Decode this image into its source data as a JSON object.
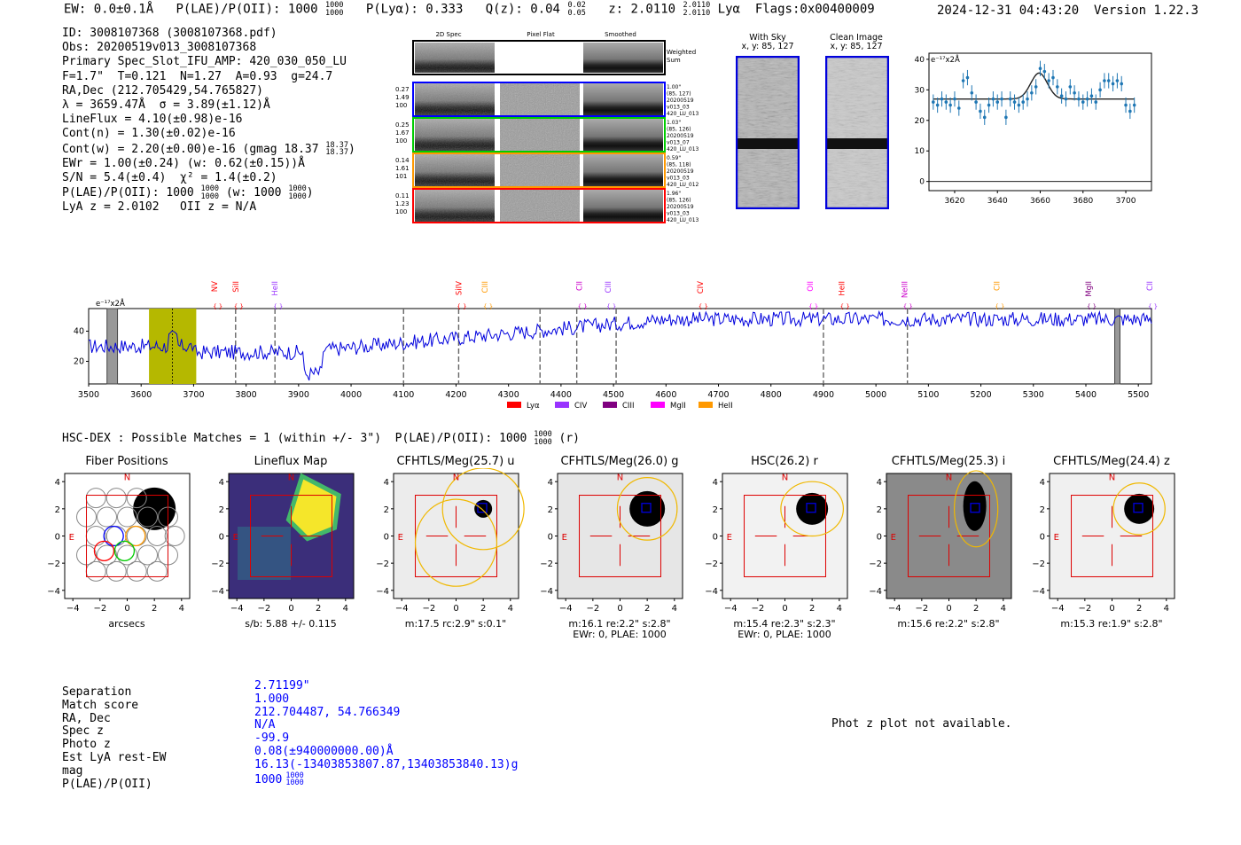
{
  "header": {
    "ew": "EW: 0.0±0.1Å",
    "plae_label": "P(LAE)/P(OII): 1000",
    "plae_hi": "1000",
    "plae_lo": "1000",
    "plya": "P(Lyα): 0.333",
    "qz_label": "Q(z): 0.04",
    "qz_hi": "0.02",
    "qz_lo": "0.05",
    "z_label": "z: 2.0110",
    "z_hi": "2.0110",
    "z_lo": "2.0110",
    "z_line": "Lyα",
    "flags": "Flags:0x00400009",
    "datetime": "2024-12-31 04:43:20",
    "version": "Version 1.22.3"
  },
  "info": {
    "id": "ID: 3008107368 (3008107368.pdf)",
    "obs": "Obs: 20200519v013_3008107368",
    "primary": "Primary Spec_Slot_IFU_AMP: 420_030_050_LU",
    "fwhm": "F=1.7\"  T=0.121  N=1.27  A=0.93  g=24.7",
    "radec": "RA,Dec (212.705429,54.765827)",
    "lambda": "λ = 3659.47Å  σ = 3.89(±1.12)Å",
    "lineflux": "LineFlux = 4.10(±0.98)e-16",
    "contn": "Cont(n) = 1.30(±0.02)e-16",
    "contw": "Cont(w) = 2.20(±0.00)e-16 (gmag 18.37",
    "contw_hi": "18.37",
    "contw_lo": "18.37",
    "ewr": "EWr = 1.00(±0.24) (w: 0.62(±0.15))Å",
    "sn": "S/N = 5.4(±0.4)  χ² = 1.4(±0.2)",
    "plae": "P(LAE)/P(OII): 1000",
    "plae_hi": "1000",
    "plae_lo": "1000",
    "plae_w": "(w: 1000",
    "plae_w_hi": "1000",
    "plae_w_lo": "1000",
    "lyaz": "LyA z = 2.0102   OII z = N/A"
  },
  "spec2d": {
    "col1": "2D Spec",
    "col2": "Pixel Flat",
    "col3": "Smoothed",
    "weighted": "Weighted Sum",
    "rows": [
      {
        "left": [
          "0.27",
          "1.49",
          "100"
        ],
        "right": [
          "1.00\"",
          "(85, 127)",
          "20200519",
          "v013_03",
          "420_LU_013"
        ],
        "color": "#0000ff"
      },
      {
        "left": [
          "0.25",
          "1.67",
          "100"
        ],
        "right": [
          "1.03\"",
          "(85, 126)",
          "20200519",
          "v013_07",
          "420_LU_013"
        ],
        "color": "#00cc00"
      },
      {
        "left": [
          "0.14",
          "1.61",
          "101"
        ],
        "right": [
          "0.59\"",
          "(85, 118)",
          "20200519",
          "v013_03",
          "420_LU_012"
        ],
        "color": "#ff9900"
      },
      {
        "left": [
          "0.11",
          "1.23",
          "100"
        ],
        "right": [
          "1.96\"",
          "(85, 126)",
          "20200519",
          "v013_03",
          "420_LU_013"
        ],
        "color": "#ff0000"
      }
    ]
  },
  "cutouts": {
    "sky_title": "With Sky",
    "sky_xy": "x, y: 85, 127",
    "clean_title": "Clean Image",
    "clean_xy": "x, y: 85, 127"
  },
  "chart_data": [
    {
      "type": "scatter",
      "title": "",
      "ylabel": "e⁻¹⁷x2Å",
      "xlabel": "",
      "xlim": [
        3608,
        3712
      ],
      "ylim": [
        -3,
        42
      ],
      "xticks": [
        3620,
        3640,
        3660,
        3680,
        3700
      ],
      "yticks": [
        0,
        10,
        20,
        30,
        40
      ],
      "x": [
        3610,
        3612,
        3614,
        3616,
        3618,
        3620,
        3622,
        3624,
        3626,
        3628,
        3630,
        3632,
        3634,
        3636,
        3638,
        3640,
        3642,
        3644,
        3646,
        3648,
        3650,
        3652,
        3654,
        3656,
        3658,
        3660,
        3662,
        3664,
        3666,
        3668,
        3670,
        3672,
        3674,
        3676,
        3678,
        3680,
        3682,
        3684,
        3686,
        3688,
        3690,
        3692,
        3694,
        3696,
        3698,
        3700,
        3702,
        3704
      ],
      "y": [
        26,
        25,
        27,
        26,
        25,
        27,
        24,
        33,
        34,
        29,
        26,
        23,
        21,
        25,
        27,
        26,
        27,
        21,
        27,
        26,
        25,
        26,
        27,
        29,
        31,
        37,
        36,
        33,
        34,
        31,
        28,
        27,
        31,
        29,
        27,
        26,
        27,
        28,
        26,
        30,
        33,
        33,
        32,
        33,
        32,
        25,
        23,
        25
      ],
      "fit": {
        "baseline": 27,
        "peak_x": 3659.47,
        "amp": 8.5,
        "sigma": 3.89
      }
    },
    {
      "type": "line",
      "ylabel": "e⁻¹⁷x2Å",
      "xlim": [
        3500,
        5525
      ],
      "ylim": [
        5,
        55
      ],
      "xticks": [
        3500,
        3600,
        3700,
        3800,
        3900,
        4000,
        4100,
        4200,
        4300,
        4400,
        4500,
        4600,
        4700,
        4800,
        4900,
        5000,
        5100,
        5200,
        5300,
        5400,
        5500
      ],
      "yticks": [
        20,
        40
      ],
      "lines": [
        {
          "name": "NV",
          "x": 3740,
          "color": "#ff0000"
        },
        {
          "name": "SiII",
          "x": 3780,
          "color": "#ff0000"
        },
        {
          "name": "HeII",
          "x": 3855,
          "color": "#9933ff"
        },
        {
          "name": "SiIV",
          "x": 4205,
          "color": "#ff0000"
        },
        {
          "name": "CIII",
          "x": 4255,
          "color": "#ff9900"
        },
        {
          "name": "CII",
          "x": 4435,
          "color": "#cc00cc"
        },
        {
          "name": "CIII",
          "x": 4490,
          "color": "#9933ff"
        },
        {
          "name": "CIV",
          "x": 4665,
          "color": "#ff0000"
        },
        {
          "name": "OII",
          "x": 4875,
          "color": "#ff00ff"
        },
        {
          "name": "HeII",
          "x": 4935,
          "color": "#ff0000"
        },
        {
          "name": "NeIII",
          "x": 5055,
          "color": "#cc00cc"
        },
        {
          "name": "CII",
          "x": 5230,
          "color": "#ff9900"
        },
        {
          "name": "MgII",
          "x": 5405,
          "color": "#800080"
        },
        {
          "name": "CII",
          "x": 5535,
          "color": "#9933ff"
        }
      ],
      "dashed": [
        3780,
        3855,
        4100,
        4205,
        4360,
        4430,
        4505,
        4900,
        5060
      ],
      "highlight": [
        3615,
        3705
      ],
      "center": 3659.47,
      "legend": [
        {
          "name": "Lyα",
          "color": "#ff0000"
        },
        {
          "name": "CIV",
          "color": "#9933ff"
        },
        {
          "name": "CIII",
          "color": "#800080"
        },
        {
          "name": "MgII",
          "color": "#ff00ff"
        },
        {
          "name": "HeII",
          "color": "#ff9900"
        }
      ]
    }
  ],
  "hsc": {
    "title": "HSC-DEX : Possible Matches = 1 (within +/- 3\")  P(LAE)/P(OII): 1000",
    "plae_hi": "1000",
    "plae_lo": "1000",
    "suffix": "(r)",
    "panels": [
      {
        "title": "Fiber Positions",
        "cap": [
          "arcsecs"
        ]
      },
      {
        "title": "Lineflux Map",
        "cap": [
          "s/b: 5.88 +/- 0.115"
        ]
      },
      {
        "title": "CFHTLS/Meg(25.7) u",
        "cap": [
          "m:17.5 rc:2.9\"  s:0.1\""
        ]
      },
      {
        "title": "CFHTLS/Meg(26.0) g",
        "cap": [
          "m:16.1  re:2.2\"  s:2.8\"",
          "EWr: 0, PLAE: 1000"
        ]
      },
      {
        "title": "HSC(26.2) r",
        "cap": [
          "m:15.4  re:2.3\"  s:2.3\"",
          "EWr: 0, PLAE: 1000"
        ]
      },
      {
        "title": "CFHTLS/Meg(25.3) i",
        "cap": [
          "m:15.6  re:2.2\"  s:2.8\""
        ]
      },
      {
        "title": "CFHTLS/Meg(24.4) z",
        "cap": [
          "m:15.3  re:1.9\"  s:2.8\""
        ]
      }
    ],
    "axis_ticks": [
      "−4",
      "−2",
      "0",
      "2",
      "4"
    ],
    "north": "N",
    "east": "E"
  },
  "match": {
    "labels": [
      "Separation",
      "Match score",
      "RA, Dec",
      "Spec z",
      "Photo z",
      "Est LyA rest-EW",
      "mag",
      "P(LAE)/P(OII)"
    ],
    "values": [
      "2.71199\"",
      "1.000",
      "212.704487, 54.766349",
      "N/A",
      "-99.9",
      "0.08(±940000000.00)Å",
      "16.13(-13403853807.87,13403853840.13)g",
      "1000"
    ],
    "plae_hi": "1000",
    "plae_lo": "1000",
    "photz_msg": "Phot z plot not available."
  }
}
